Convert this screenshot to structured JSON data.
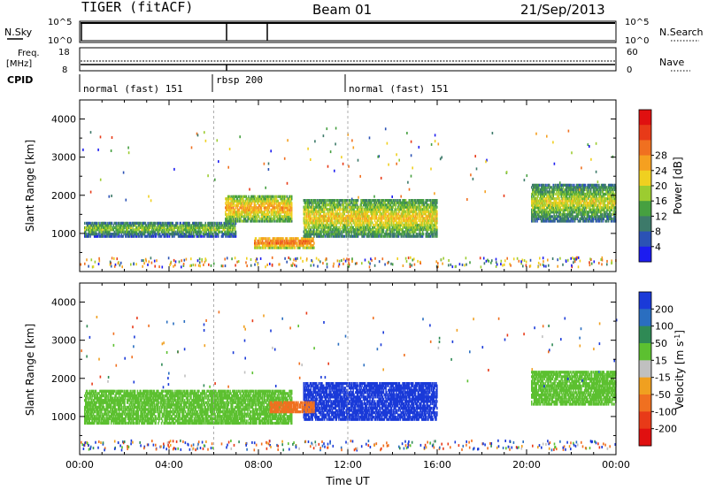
{
  "header": {
    "title": "TIGER (fitACF)",
    "beam": "Beam 01",
    "date": "21/Sep/2013"
  },
  "panels": {
    "nsky": {
      "label": "N.Sky",
      "tick_top": "10^5",
      "tick_bottom": "10^0",
      "right_label": "N.Search",
      "right_tick_top": "10^5",
      "right_tick_bottom": "10^0"
    },
    "freq": {
      "label_line1": "Freq.",
      "label_line2": "[MHz]",
      "tick_top": "18",
      "tick_bottom": "8",
      "right_label": "Nave",
      "right_tick_top": "60",
      "right_tick_bottom": "0"
    },
    "cpid": {
      "label": "CPID",
      "segments": [
        "normal (fast) 151",
        "rbsp 200",
        "normal (fast) 151"
      ]
    }
  },
  "colorbars": {
    "power": {
      "label": "Power [dB]",
      "ticks": [
        "4",
        "8",
        "12",
        "16",
        "20",
        "24",
        "28"
      ],
      "colors": [
        "#1c1cf0",
        "#2b52b5",
        "#3d7a6a",
        "#46a040",
        "#9ccc30",
        "#f0d020",
        "#f5a020",
        "#f07020",
        "#e83a18",
        "#e01010"
      ]
    },
    "velocity": {
      "label": "Velocity [m s",
      "label_sup": "-1",
      "label_end": "]",
      "ticks": [
        "200",
        "100",
        "50",
        "15",
        "-15",
        "-50",
        "-100",
        "-200"
      ],
      "colors": [
        "#1a3ad8",
        "#2a6ec0",
        "#2f8a55",
        "#5cc030",
        "#c0c0c0",
        "#f0a020",
        "#f07020",
        "#e83a18",
        "#e01010"
      ]
    }
  },
  "chart_data": [
    {
      "type": "heatmap",
      "name": "power-panel",
      "ylabel": "Slant Range [km]",
      "yticks": [
        1000,
        2000,
        3000,
        4000
      ],
      "ylim": [
        0,
        4500
      ],
      "xticks_hours": [
        0,
        4,
        8,
        12,
        16,
        20,
        24
      ],
      "xlim_hours": [
        0,
        24
      ],
      "cpid_boundaries_hours": [
        6,
        12
      ],
      "features": [
        {
          "desc": "band",
          "t_start": 0.2,
          "t_end": 7.0,
          "range_start_km": 900,
          "range_end_km": 1300,
          "value": 16
        },
        {
          "desc": "band",
          "t_start": 6.5,
          "t_end": 9.5,
          "range_start_km": 1300,
          "range_end_km": 2000,
          "value": 22
        },
        {
          "desc": "band",
          "t_start": 7.8,
          "t_end": 10.5,
          "range_start_km": 600,
          "range_end_km": 900,
          "value": 26
        },
        {
          "desc": "band",
          "t_start": 10.0,
          "t_end": 16.0,
          "range_start_km": 900,
          "range_end_km": 1900,
          "value": 20
        },
        {
          "desc": "band",
          "t_start": 20.2,
          "t_end": 24.0,
          "range_start_km": 1300,
          "range_end_km": 2300,
          "value": 18
        }
      ]
    },
    {
      "type": "heatmap",
      "name": "velocity-panel",
      "ylabel": "Slant Range [km]",
      "xlabel": "Time UT",
      "yticks": [
        1000,
        2000,
        3000,
        4000
      ],
      "ylim": [
        0,
        4500
      ],
      "xticks": [
        "00:00",
        "04:00",
        "08:00",
        "12:00",
        "16:00",
        "20:00",
        "00:00"
      ],
      "xlim_hours": [
        0,
        24
      ],
      "cpid_boundaries_hours": [
        6,
        12
      ],
      "features": [
        {
          "desc": "ground scatter",
          "t_start": 0.2,
          "t_end": 9.5,
          "range_start_km": 800,
          "range_end_km": 1700,
          "value": 0
        },
        {
          "desc": "westward flow",
          "t_start": 10.0,
          "t_end": 16.0,
          "range_start_km": 900,
          "range_end_km": 1900,
          "value": 150
        },
        {
          "desc": "eastward flow",
          "t_start": 8.5,
          "t_end": 10.5,
          "range_start_km": 1100,
          "range_end_km": 1400,
          "value": -150
        },
        {
          "desc": "ground scatter",
          "t_start": 20.2,
          "t_end": 24.0,
          "range_start_km": 1300,
          "range_end_km": 2200,
          "value": 0
        }
      ]
    }
  ]
}
